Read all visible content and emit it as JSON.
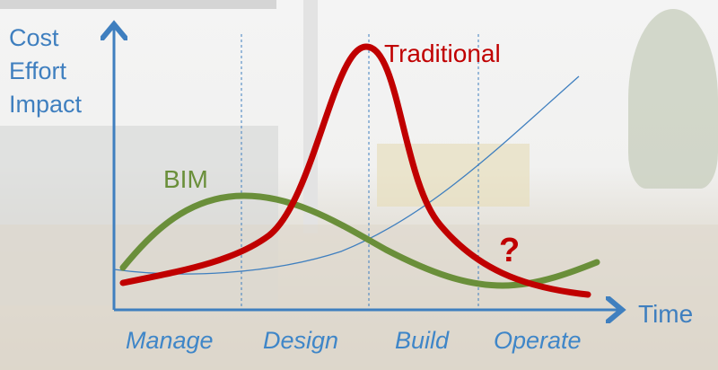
{
  "axes": {
    "y_label_lines": [
      "Cost",
      "Effort",
      "Impact"
    ],
    "x_label": "Time"
  },
  "curves": {
    "traditional_label": "Traditional",
    "bim_label": "BIM",
    "question_mark": "?"
  },
  "phases": [
    "Manage",
    "Design",
    "Build",
    "Operate"
  ],
  "colors": {
    "axis": "#3f7fbf",
    "traditional": "#c00000",
    "bim": "#6a8f3a",
    "cost_curve": "#3f7fbf"
  }
}
